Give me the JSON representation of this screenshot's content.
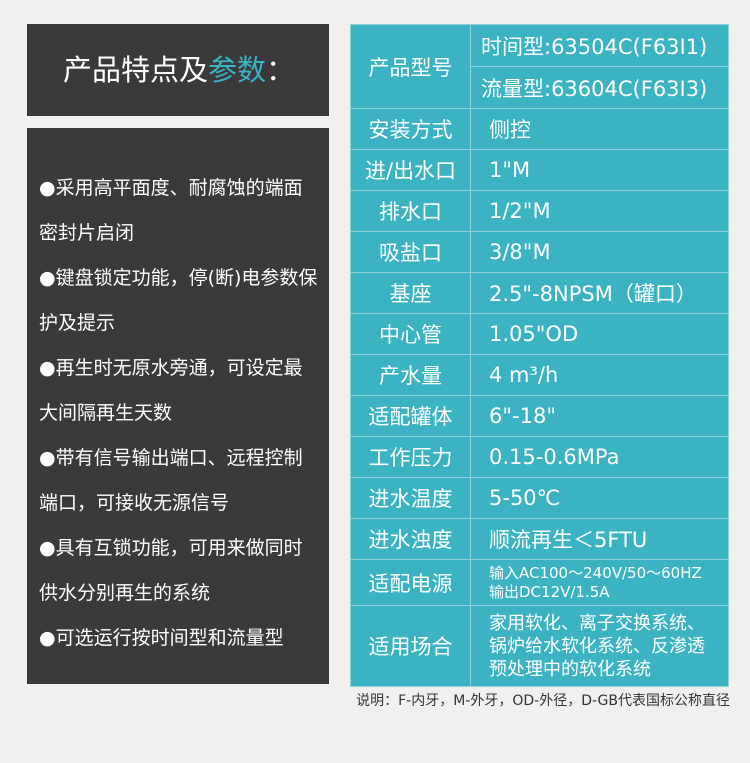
{
  "title": {
    "text": "产品特点及",
    "accent": "参数",
    "suffix": "："
  },
  "features": [
    "●采用高平面度、耐腐蚀的端面密封片启闭",
    "●键盘锁定功能，停(断)电参数保护及提示",
    "●再生时无原水旁通，可设定最大间隔再生天数",
    "●带有信号输出端口、远程控制端口，可接收无源信号",
    "●具有互锁功能，可用来做同时供水分别再生的系统",
    "●可选运行按时间型和流量型"
  ],
  "model": {
    "label": "产品型号",
    "values": [
      "时间型:63504C(F63I1)",
      "流量型:63604C(F63I3)"
    ]
  },
  "rows": [
    {
      "k": "安装方式",
      "v": "侧控"
    },
    {
      "k": "进/出水口",
      "v": "1\"M"
    },
    {
      "k": "排水口",
      "v": "1/2\"M"
    },
    {
      "k": "吸盐口",
      "v": "3/8\"M"
    },
    {
      "k": "基座",
      "v": "2.5\"-8NPSM（罐口）"
    },
    {
      "k": "中心管",
      "v": "1.05\"OD"
    },
    {
      "k": "产水量",
      "v": "4 m³/h"
    },
    {
      "k": "适配罐体",
      "v": "6\"-18\""
    },
    {
      "k": "工作压力",
      "v": "0.15-0.6MPa"
    },
    {
      "k": "进水温度",
      "v": "5-50℃"
    },
    {
      "k": "进水浊度",
      "v": "顺流再生＜5FTU"
    }
  ],
  "power": {
    "k": "适配电源",
    "lines": [
      "输入AC100～240V/50～60HZ",
      "输出DC12V/1.5A"
    ]
  },
  "usage": {
    "k": "适用场合",
    "v": "家用软化、离子交换系统、锅炉给水软化系统、反渗透预处理中的软化系统"
  },
  "note": "说明：F-内牙，M-外牙，OD-外径，D-GB代表国标公称直径",
  "colors": {
    "teal": "#3bb3c3",
    "dark": "#3a3a3a"
  }
}
